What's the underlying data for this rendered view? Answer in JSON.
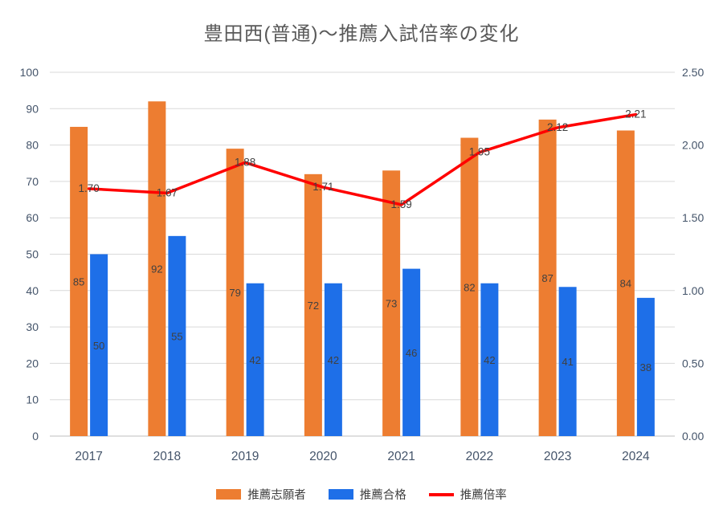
{
  "chart_data": {
    "type": "combo",
    "title": "豊田西(普通)～推薦入試倍率の変化",
    "categories": [
      "2017",
      "2018",
      "2019",
      "2020",
      "2021",
      "2022",
      "2023",
      "2024"
    ],
    "series": [
      {
        "name": "推薦志願者",
        "type": "bar",
        "axis": "left",
        "color": "#ED7D31",
        "values": [
          85,
          92,
          79,
          72,
          73,
          82,
          87,
          84
        ]
      },
      {
        "name": "推薦合格",
        "type": "bar",
        "axis": "left",
        "color": "#1E6FE8",
        "values": [
          50,
          55,
          42,
          42,
          46,
          42,
          41,
          38
        ]
      },
      {
        "name": "推薦倍率",
        "type": "line",
        "axis": "right",
        "color": "#FF0000",
        "values": [
          1.7,
          1.67,
          1.88,
          1.71,
          1.59,
          1.95,
          2.12,
          2.21
        ]
      }
    ],
    "left_axis": {
      "min": 0,
      "max": 100,
      "step": 10,
      "ticks": [
        "0",
        "10",
        "20",
        "30",
        "40",
        "50",
        "60",
        "70",
        "80",
        "90",
        "100"
      ]
    },
    "right_axis": {
      "min": 0,
      "max": 2.5,
      "step": 0.5,
      "ticks": [
        "0.00",
        "0.50",
        "1.00",
        "1.50",
        "2.00",
        "2.50"
      ]
    },
    "grid": true,
    "legend_position": "bottom",
    "data_labels": true,
    "colors": {
      "title_text": "#595959",
      "axis_text": "#44546A",
      "data_label_text": "#404040",
      "gridline": "#D9D9D9",
      "axis_line": "#BFBFBF"
    }
  }
}
